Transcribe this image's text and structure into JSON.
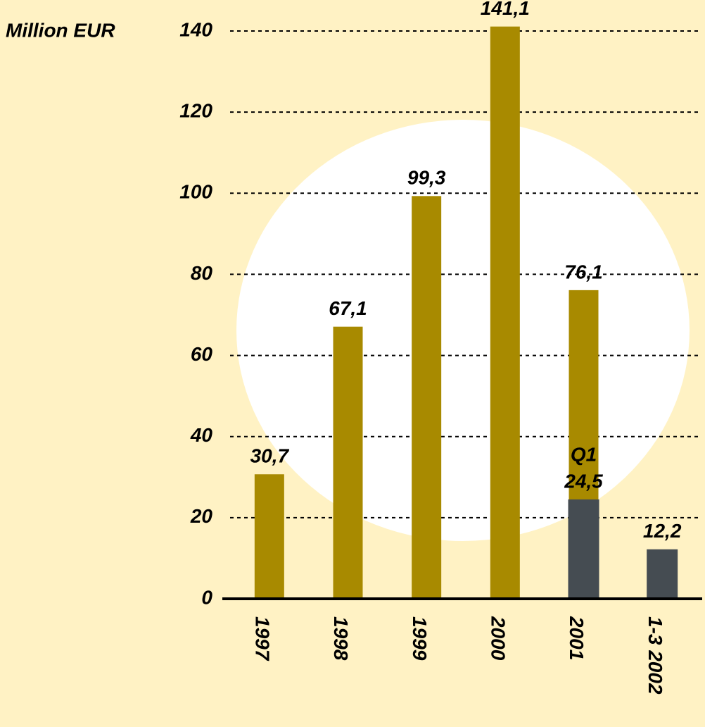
{
  "chart_data": {
    "type": "bar",
    "y_label": "Million EUR",
    "categories": [
      "1997",
      "1998",
      "1999",
      "2000",
      "2001",
      "1-3 2002"
    ],
    "series": [
      {
        "color": "#a88a00",
        "values": [
          30.7,
          67.1,
          99.3,
          141.1,
          76.1,
          null
        ],
        "value_labels": [
          "30,7",
          "67,1",
          "99,3",
          "141,1",
          "76,1",
          null
        ]
      },
      {
        "name": "Q1",
        "color": "#454c52",
        "values": [
          null,
          null,
          null,
          null,
          24.5,
          12.2
        ],
        "value_labels": [
          null,
          null,
          null,
          null,
          "24,5",
          "12,2"
        ]
      }
    ],
    "ylim": [
      0,
      140
    ],
    "yticks": [
      0,
      20,
      40,
      60,
      80,
      100,
      120,
      140
    ],
    "grid": true
  }
}
